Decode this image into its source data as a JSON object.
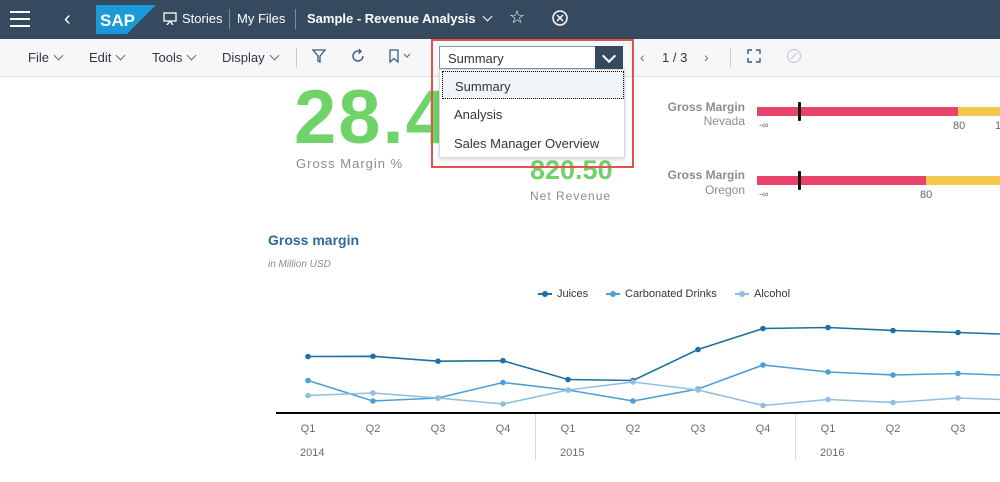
{
  "shell": {
    "logo_text": "SAP",
    "stories_label": "Stories",
    "my_files_label": "My Files",
    "story_title": "Sample - Revenue Analysis"
  },
  "toolbar": {
    "menus": [
      "File",
      "Edit",
      "Tools",
      "Display"
    ],
    "page_indicator": "1 / 3"
  },
  "page_select": {
    "selected": "Summary",
    "options": [
      "Summary",
      "Analysis",
      "Sales Manager Overview"
    ]
  },
  "kpis": {
    "gross_margin_value": "28.4",
    "gross_margin_label": "Gross Margin %",
    "net_revenue_value": "820.50",
    "net_revenue_label": "Net Revenue"
  },
  "bullet_charts": [
    {
      "title": "Gross Margin",
      "region": "Nevada",
      "min_label": "-∞",
      "threshold_label": "80",
      "extra_label": "1"
    },
    {
      "title": "Gross Margin",
      "region": "Oregon",
      "min_label": "-∞",
      "threshold_label": "80"
    }
  ],
  "colors": {
    "shell": "#354a5f",
    "kpi_green": "#6fd36a",
    "bar_red": "#e8436a",
    "bar_yellow": "#f2c94c",
    "highlight": "#e5504a"
  },
  "chart_data": {
    "type": "line",
    "title": "Gross margin",
    "subtitle": "in Million USD",
    "x": [
      "Q1",
      "Q2",
      "Q3",
      "Q4",
      "Q1",
      "Q2",
      "Q3",
      "Q4",
      "Q1",
      "Q2",
      "Q3"
    ],
    "x_groups": [
      {
        "label": "2014",
        "span": 4
      },
      {
        "label": "2015",
        "span": 4
      },
      {
        "label": "2016",
        "span": 3
      }
    ],
    "series": [
      {
        "name": "Juices",
        "color": "#1e6fa3",
        "values": [
          55.5,
          55.7,
          50.8,
          51.3,
          32.5,
          31.5,
          62.5,
          83.5,
          84.5,
          81.5,
          79.5
        ]
      },
      {
        "name": "Carbonated Drinks",
        "color": "#4c9ed6",
        "values": [
          31.5,
          11.0,
          14.0,
          29.5,
          22.0,
          11.0,
          23.0,
          47.0,
          40.0,
          37.0,
          38.5
        ]
      },
      {
        "name": "Alcohol",
        "color": "#92bde0",
        "values": [
          16.5,
          19.0,
          14.0,
          8.0,
          22.0,
          30.0,
          22.0,
          6.5,
          12.5,
          9.5,
          14.0
        ]
      }
    ],
    "legend_position": "top"
  }
}
